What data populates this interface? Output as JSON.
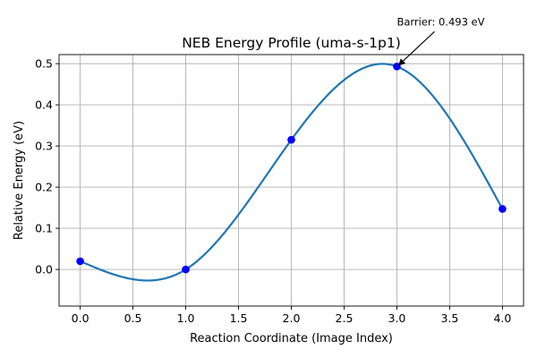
{
  "chart_data": {
    "type": "line",
    "title": "NEB Energy Profile (uma-s-1p1)",
    "xlabel": "Reaction Coordinate (Image Index)",
    "ylabel": "Relative Energy (eV)",
    "xlim": [
      -0.2,
      4.2
    ],
    "ylim": [
      -0.089,
      0.522
    ],
    "xticks": [
      0.0,
      0.5,
      1.0,
      1.5,
      2.0,
      2.5,
      3.0,
      3.5,
      4.0
    ],
    "xtick_labels": [
      "0.0",
      "0.5",
      "1.0",
      "1.5",
      "2.0",
      "2.5",
      "3.0",
      "3.5",
      "4.0"
    ],
    "yticks": [
      0.0,
      0.1,
      0.2,
      0.3,
      0.4,
      0.5
    ],
    "ytick_labels": [
      "0.0",
      "0.1",
      "0.2",
      "0.3",
      "0.4",
      "0.5"
    ],
    "grid": true,
    "series": [
      {
        "kind": "points",
        "x": [
          0,
          1,
          2,
          3,
          4
        ],
        "y": [
          0.02,
          0.0,
          0.315,
          0.493,
          0.147
        ],
        "color": "#0000ff"
      },
      {
        "kind": "spline",
        "x": [
          0,
          1,
          2,
          3,
          4
        ],
        "y": [
          0.02,
          0.0,
          0.315,
          0.493,
          0.147
        ],
        "color": "#1f77b4"
      }
    ],
    "annotations": [
      {
        "text": "Barrier: 0.493 eV",
        "x": 3,
        "y": 0.493
      }
    ]
  }
}
